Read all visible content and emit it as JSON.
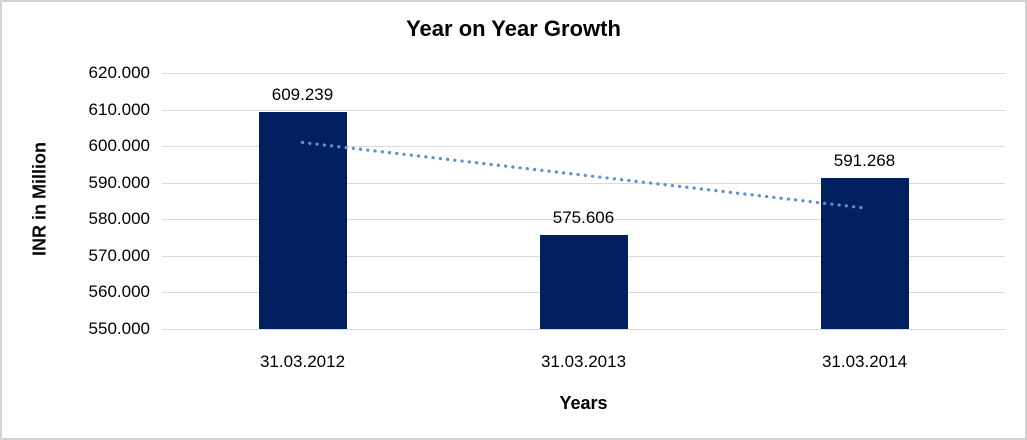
{
  "chart_data": {
    "type": "bar",
    "title": "Year on Year Growth",
    "xlabel": "Years",
    "ylabel": "INR in Million",
    "categories": [
      "31.03.2012",
      "31.03.2013",
      "31.03.2014"
    ],
    "series": [
      {
        "name": "INR in Million",
        "values": [
          609.239,
          575.606,
          591.268
        ]
      }
    ],
    "data_labels": [
      "609.239",
      "575.606",
      "591.268"
    ],
    "ytick_labels": [
      "550.000",
      "560.000",
      "570.000",
      "580.000",
      "590.000",
      "600.000",
      "610.000",
      "620.000"
    ],
    "ylim": [
      550,
      620
    ],
    "ytick_step": 10,
    "grid": "horizontal",
    "legend": "none",
    "trendline": {
      "type": "linear",
      "style": "dotted",
      "start_value": 601.0,
      "end_value": 583.1
    }
  },
  "style": {
    "bar_color": "#002060",
    "trendline_color": "#5C8FD6",
    "grid_color": "#d9d9d9",
    "text_color": "#000000",
    "border_color": "#d4d4d4",
    "background_color": "#ffffff"
  }
}
